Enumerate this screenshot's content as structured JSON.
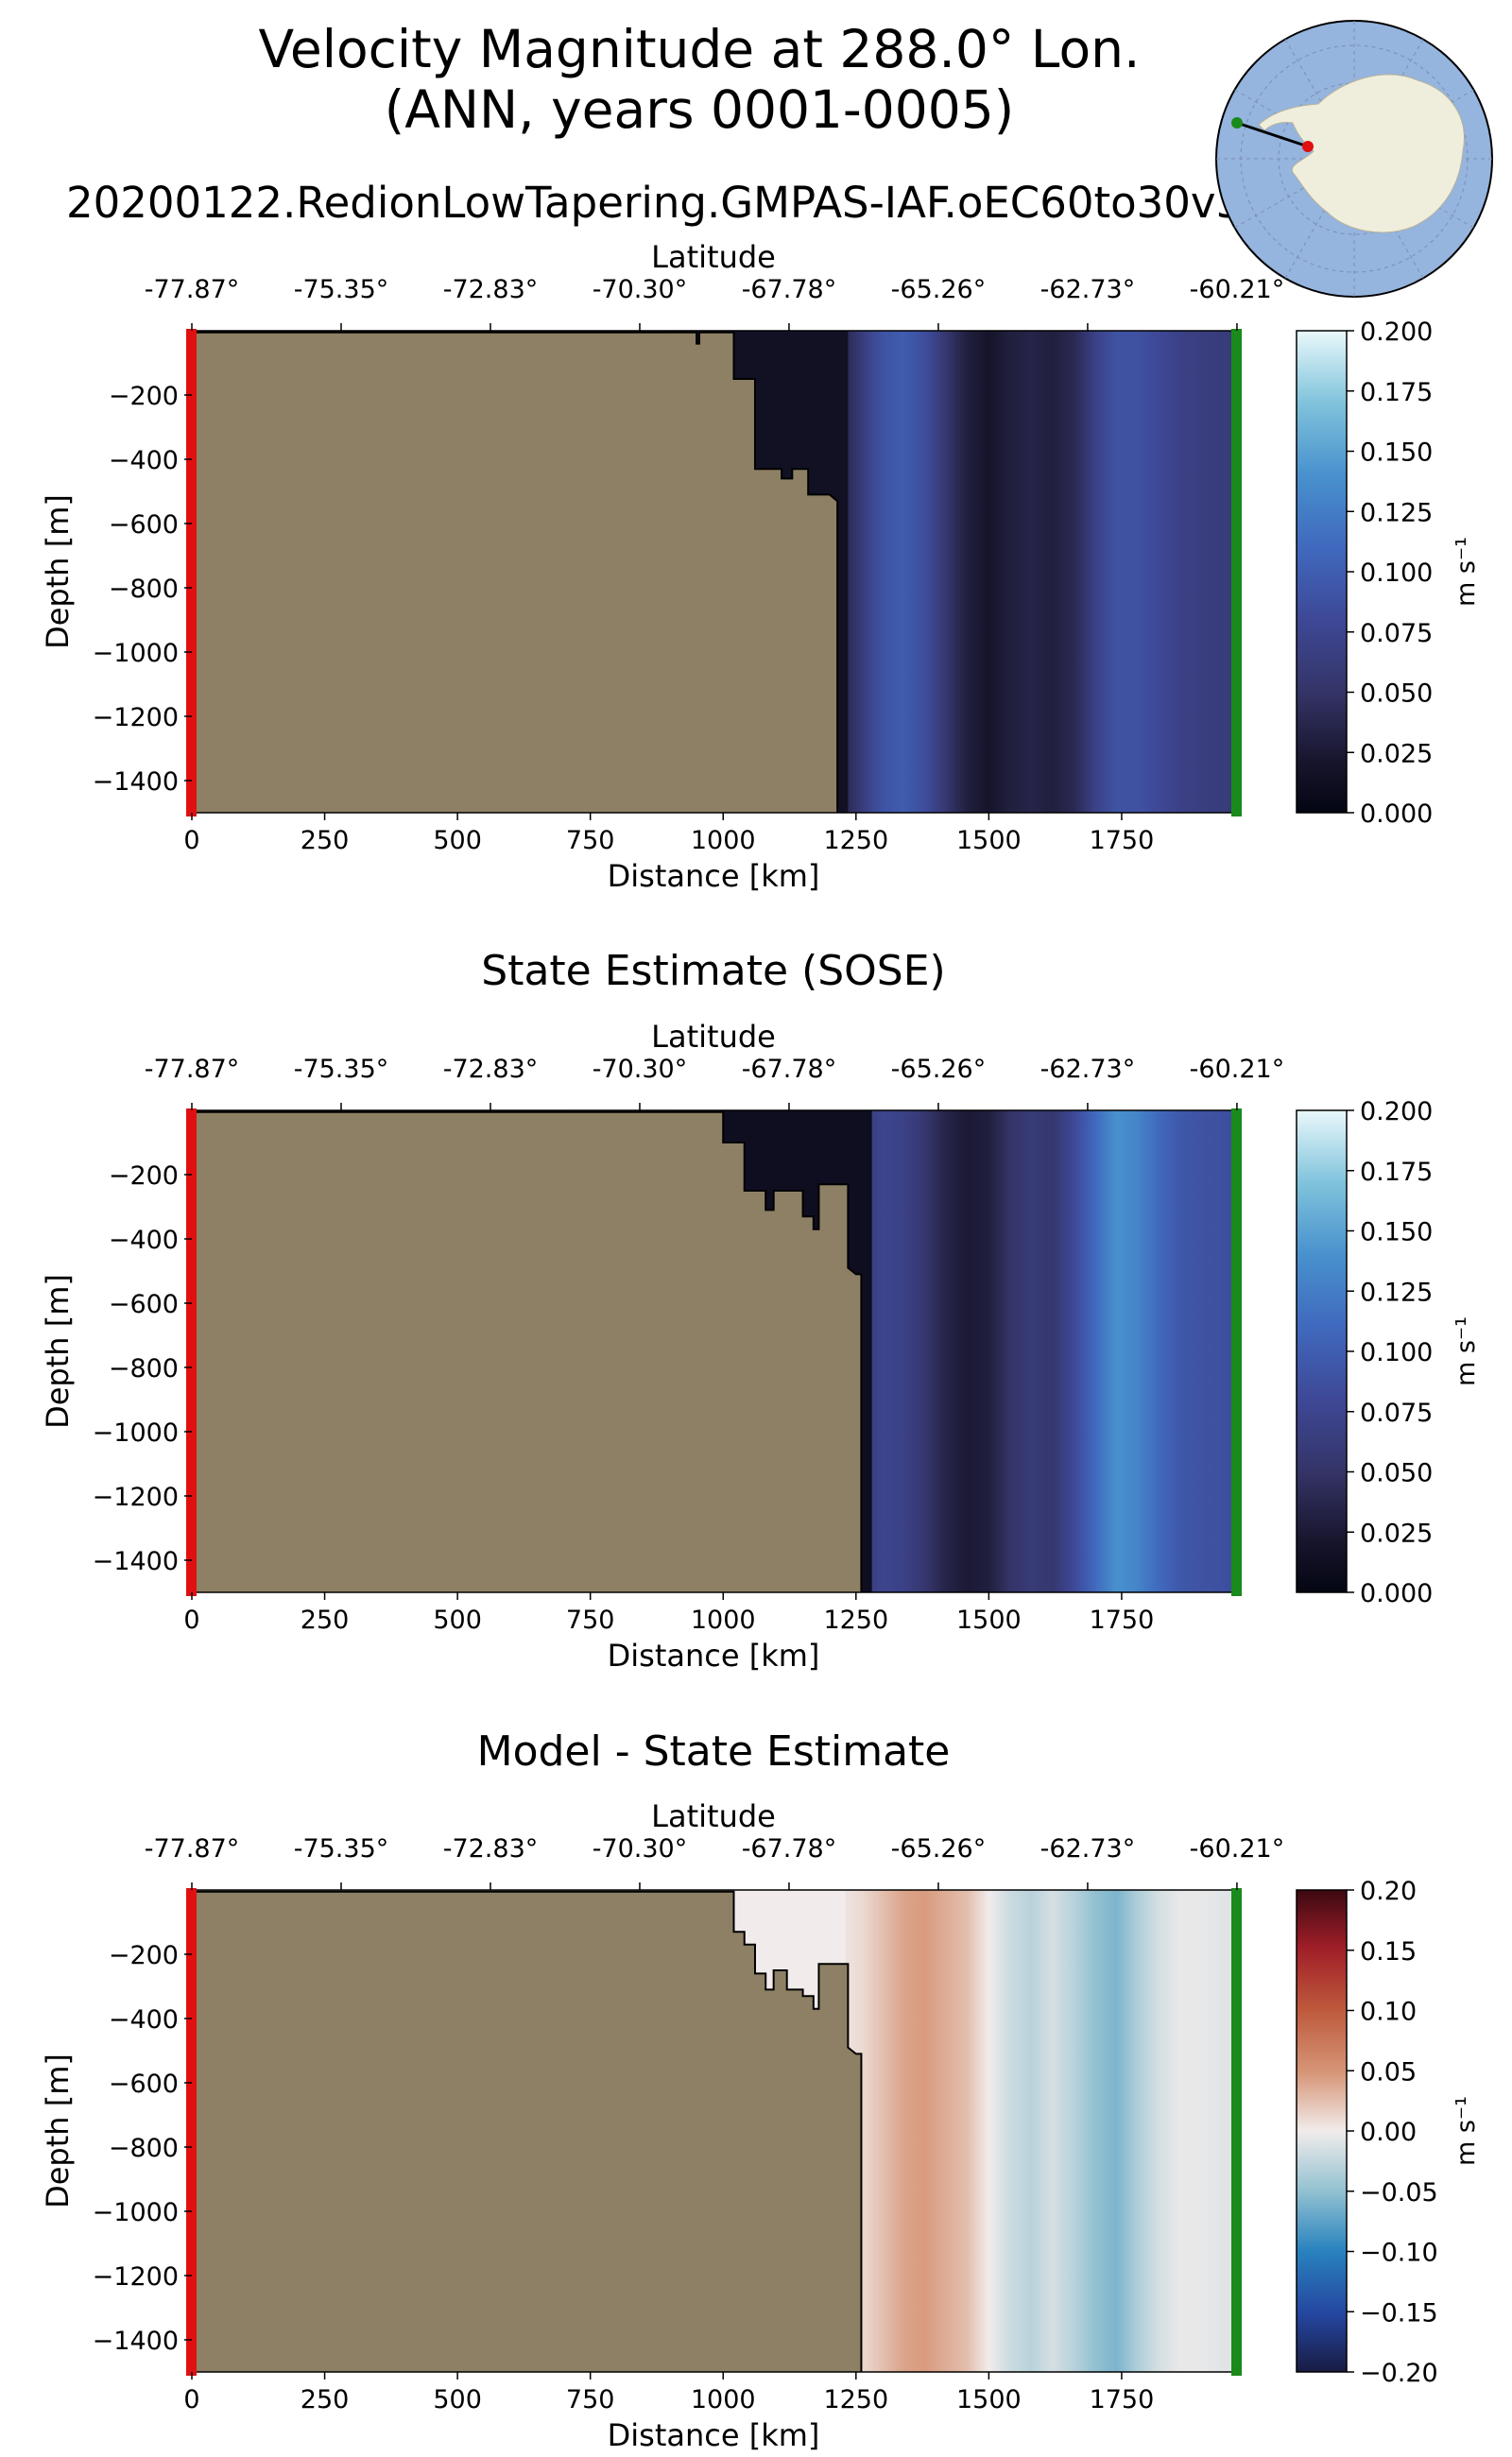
{
  "figure": {
    "title_line1": "Velocity Magnitude at 288.0° Lon.",
    "title_line2": "(ANN, years 0001-0005)",
    "run_name": "20200122.RedionLowTapering.GMPAS-IAF.oEC60to30v3"
  },
  "colors": {
    "land": "#8e8065",
    "start_marker": "#e01010",
    "end_marker": "#1a8a1a",
    "map_ocean": "#95b4de",
    "map_land": "#efeedc"
  },
  "inset_map": {
    "projection": "south-polar stereographic",
    "transect_start_color": "red",
    "transect_end_color": "green"
  },
  "chart_data": [
    {
      "id": "model",
      "type": "heatmap",
      "title": "",
      "xlabel": "Distance [km]",
      "ylabel": "Depth [m]",
      "top_axis_label": "Latitude",
      "xlim": [
        0,
        1960
      ],
      "ylim": [
        -1500,
        0
      ],
      "x_ticks": [
        0,
        250,
        500,
        750,
        1000,
        1250,
        1500,
        1750
      ],
      "y_ticks": [
        -200,
        -400,
        -600,
        -800,
        -1000,
        -1200,
        -1400
      ],
      "lat_ticks": [
        "-77.87°",
        "-75.35°",
        "-72.83°",
        "-70.30°",
        "-67.78°",
        "-65.26°",
        "-62.73°",
        "-60.21°"
      ],
      "lat_tick_distances": [
        0,
        281,
        562,
        843,
        1124,
        1405,
        1686,
        1967
      ],
      "colorbar": {
        "min": 0.0,
        "max": 0.2,
        "ticks": [
          "0.000",
          "0.025",
          "0.050",
          "0.075",
          "0.100",
          "0.125",
          "0.150",
          "0.175",
          "0.200"
        ],
        "label": "m s⁻¹",
        "colormap": "ice"
      },
      "bathymetry_profile": [
        [
          0,
          -5
        ],
        [
          950,
          -5
        ],
        [
          950,
          -40
        ],
        [
          955,
          -40
        ],
        [
          955,
          -5
        ],
        [
          1020,
          -5
        ],
        [
          1020,
          -150
        ],
        [
          1060,
          -150
        ],
        [
          1060,
          -430
        ],
        [
          1110,
          -430
        ],
        [
          1110,
          -460
        ],
        [
          1130,
          -460
        ],
        [
          1130,
          -430
        ],
        [
          1160,
          -430
        ],
        [
          1160,
          -510
        ],
        [
          1200,
          -510
        ],
        [
          1215,
          -530
        ],
        [
          1215,
          -1500
        ]
      ],
      "velocity_profile_x": [
        1215,
        1240,
        1270,
        1300,
        1340,
        1380,
        1420,
        1460,
        1500,
        1540,
        1580,
        1620,
        1660,
        1700,
        1740,
        1780,
        1820,
        1860,
        1900,
        1960
      ],
      "velocity_profile_v": [
        0.03,
        0.045,
        0.07,
        0.09,
        0.098,
        0.085,
        0.055,
        0.03,
        0.02,
        0.03,
        0.035,
        0.03,
        0.04,
        0.07,
        0.09,
        0.088,
        0.08,
        0.07,
        0.065,
        0.06
      ],
      "shelf_velocity": 0.015
    },
    {
      "id": "sose",
      "type": "heatmap",
      "title": "State Estimate (SOSE)",
      "xlabel": "Distance [km]",
      "ylabel": "Depth [m]",
      "top_axis_label": "Latitude",
      "xlim": [
        0,
        1960
      ],
      "ylim": [
        -1500,
        0
      ],
      "x_ticks": [
        0,
        250,
        500,
        750,
        1000,
        1250,
        1500,
        1750
      ],
      "y_ticks": [
        -200,
        -400,
        -600,
        -800,
        -1000,
        -1200,
        -1400
      ],
      "lat_ticks": [
        "-77.87°",
        "-75.35°",
        "-72.83°",
        "-70.30°",
        "-67.78°",
        "-65.26°",
        "-62.73°",
        "-60.21°"
      ],
      "lat_tick_distances": [
        0,
        281,
        562,
        843,
        1124,
        1405,
        1686,
        1967
      ],
      "colorbar": {
        "min": 0.0,
        "max": 0.2,
        "ticks": [
          "0.000",
          "0.025",
          "0.050",
          "0.075",
          "0.100",
          "0.125",
          "0.150",
          "0.175",
          "0.200"
        ],
        "label": "m s⁻¹",
        "colormap": "ice"
      },
      "bathymetry_profile": [
        [
          0,
          -5
        ],
        [
          1000,
          -5
        ],
        [
          1000,
          -100
        ],
        [
          1040,
          -100
        ],
        [
          1040,
          -250
        ],
        [
          1080,
          -250
        ],
        [
          1080,
          -310
        ],
        [
          1095,
          -310
        ],
        [
          1095,
          -250
        ],
        [
          1150,
          -250
        ],
        [
          1150,
          -330
        ],
        [
          1170,
          -330
        ],
        [
          1170,
          -370
        ],
        [
          1180,
          -370
        ],
        [
          1180,
          -230
        ],
        [
          1235,
          -230
        ],
        [
          1235,
          -490
        ],
        [
          1250,
          -510
        ],
        [
          1260,
          -510
        ],
        [
          1260,
          -1500
        ]
      ],
      "velocity_profile_x": [
        1260,
        1300,
        1340,
        1380,
        1420,
        1460,
        1500,
        1540,
        1580,
        1620,
        1660,
        1700,
        1740,
        1780,
        1820,
        1860,
        1900,
        1960
      ],
      "velocity_profile_v": [
        0.06,
        0.075,
        0.07,
        0.055,
        0.035,
        0.025,
        0.03,
        0.05,
        0.06,
        0.055,
        0.08,
        0.11,
        0.14,
        0.13,
        0.11,
        0.095,
        0.09,
        0.085
      ],
      "shelf_velocity": 0.012
    },
    {
      "id": "diff",
      "type": "heatmap",
      "title": "Model - State Estimate",
      "xlabel": "Distance [km]",
      "ylabel": "Depth [m]",
      "top_axis_label": "Latitude",
      "xlim": [
        0,
        1960
      ],
      "ylim": [
        -1500,
        0
      ],
      "x_ticks": [
        0,
        250,
        500,
        750,
        1000,
        1250,
        1500,
        1750
      ],
      "y_ticks": [
        -200,
        -400,
        -600,
        -800,
        -1000,
        -1200,
        -1400
      ],
      "lat_ticks": [
        "-77.87°",
        "-75.35°",
        "-72.83°",
        "-70.30°",
        "-67.78°",
        "-65.26°",
        "-62.73°",
        "-60.21°"
      ],
      "lat_tick_distances": [
        0,
        281,
        562,
        843,
        1124,
        1405,
        1686,
        1967
      ],
      "colorbar": {
        "min": -0.2,
        "max": 0.2,
        "ticks": [
          "0.20",
          "0.15",
          "0.10",
          "0.05",
          "0.00",
          "−0.05",
          "−0.10",
          "−0.15",
          "−0.20"
        ],
        "label": "m s⁻¹",
        "colormap": "balance"
      },
      "bathymetry_profile": [
        [
          0,
          -5
        ],
        [
          1020,
          -5
        ],
        [
          1020,
          -130
        ],
        [
          1040,
          -130
        ],
        [
          1040,
          -170
        ],
        [
          1060,
          -170
        ],
        [
          1060,
          -260
        ],
        [
          1080,
          -260
        ],
        [
          1080,
          -310
        ],
        [
          1095,
          -310
        ],
        [
          1095,
          -250
        ],
        [
          1120,
          -250
        ],
        [
          1120,
          -310
        ],
        [
          1150,
          -310
        ],
        [
          1150,
          -330
        ],
        [
          1170,
          -330
        ],
        [
          1170,
          -370
        ],
        [
          1180,
          -370
        ],
        [
          1180,
          -230
        ],
        [
          1235,
          -230
        ],
        [
          1235,
          -490
        ],
        [
          1250,
          -510
        ],
        [
          1260,
          -510
        ],
        [
          1260,
          -1500
        ]
      ],
      "velocity_profile_x": [
        1020,
        1200,
        1260,
        1300,
        1340,
        1380,
        1420,
        1460,
        1500,
        1540,
        1580,
        1620,
        1660,
        1700,
        1740,
        1780,
        1820,
        1860,
        1900,
        1960
      ],
      "velocity_profile_v": [
        0.0,
        0.0,
        0.01,
        0.025,
        0.04,
        0.045,
        0.035,
        0.025,
        0.0,
        -0.02,
        -0.03,
        -0.015,
        -0.03,
        -0.05,
        -0.06,
        -0.035,
        -0.015,
        -0.005,
        -0.005,
        -0.01
      ],
      "shelf_velocity": 0.0
    }
  ]
}
